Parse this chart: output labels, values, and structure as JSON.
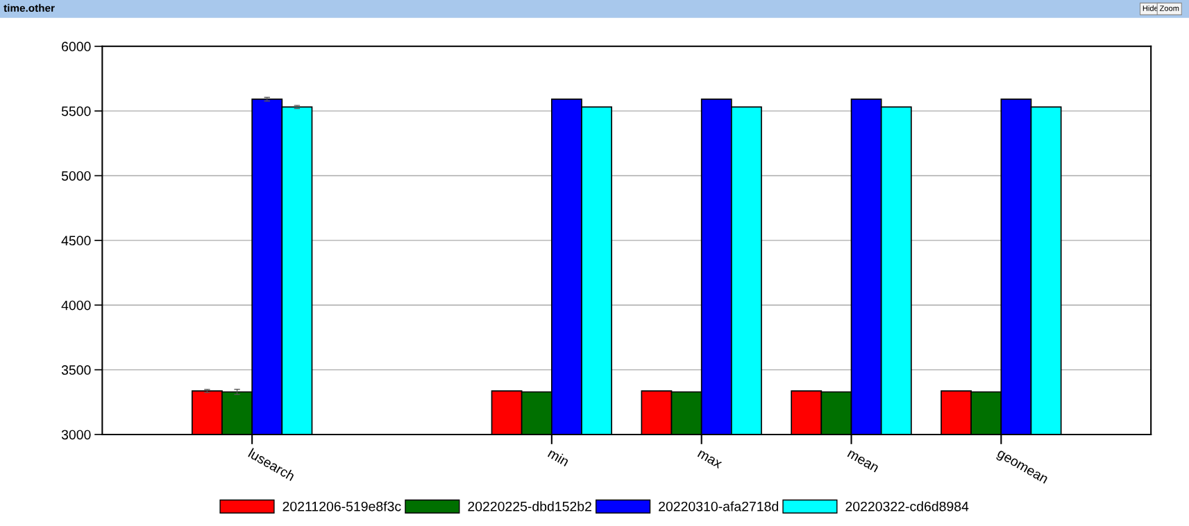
{
  "chart_data": {
    "type": "bar",
    "title": "time.other",
    "annotations": [
      "Hide",
      "Zoom"
    ],
    "categories": [
      null,
      "lusearch",
      null,
      "min",
      "max",
      "mean",
      "geomean",
      null
    ],
    "series": [
      {
        "name": "20211206-519e8f3c",
        "color": "#ff0000",
        "values": [
          null,
          3336,
          null,
          3336,
          3336,
          3336,
          3336,
          null
        ],
        "errors": [
          null,
          12,
          null,
          null,
          null,
          null,
          null,
          null
        ]
      },
      {
        "name": "20220225-dbd152b2",
        "color": "#007000",
        "values": [
          null,
          3329,
          null,
          3329,
          3329,
          3329,
          3329,
          null
        ],
        "errors": [
          null,
          20,
          null,
          null,
          null,
          null,
          null,
          null
        ]
      },
      {
        "name": "20220310-afa2718d",
        "color": "#0000ff",
        "values": [
          null,
          5591,
          null,
          5591,
          5591,
          5591,
          5591,
          null
        ],
        "errors": [
          null,
          14,
          null,
          null,
          null,
          null,
          null,
          null
        ]
      },
      {
        "name": "20220322-cd6d8984",
        "color": "#00ffff",
        "values": [
          null,
          5531,
          null,
          5531,
          5531,
          5531,
          5531,
          null
        ],
        "errors": [
          null,
          12,
          null,
          null,
          null,
          null,
          null,
          null
        ]
      }
    ],
    "ylim": [
      3000,
      6000
    ],
    "yticks": [
      3000,
      3500,
      4000,
      4500,
      5000,
      5500,
      6000
    ],
    "grid": "y",
    "legend": "bottom"
  }
}
